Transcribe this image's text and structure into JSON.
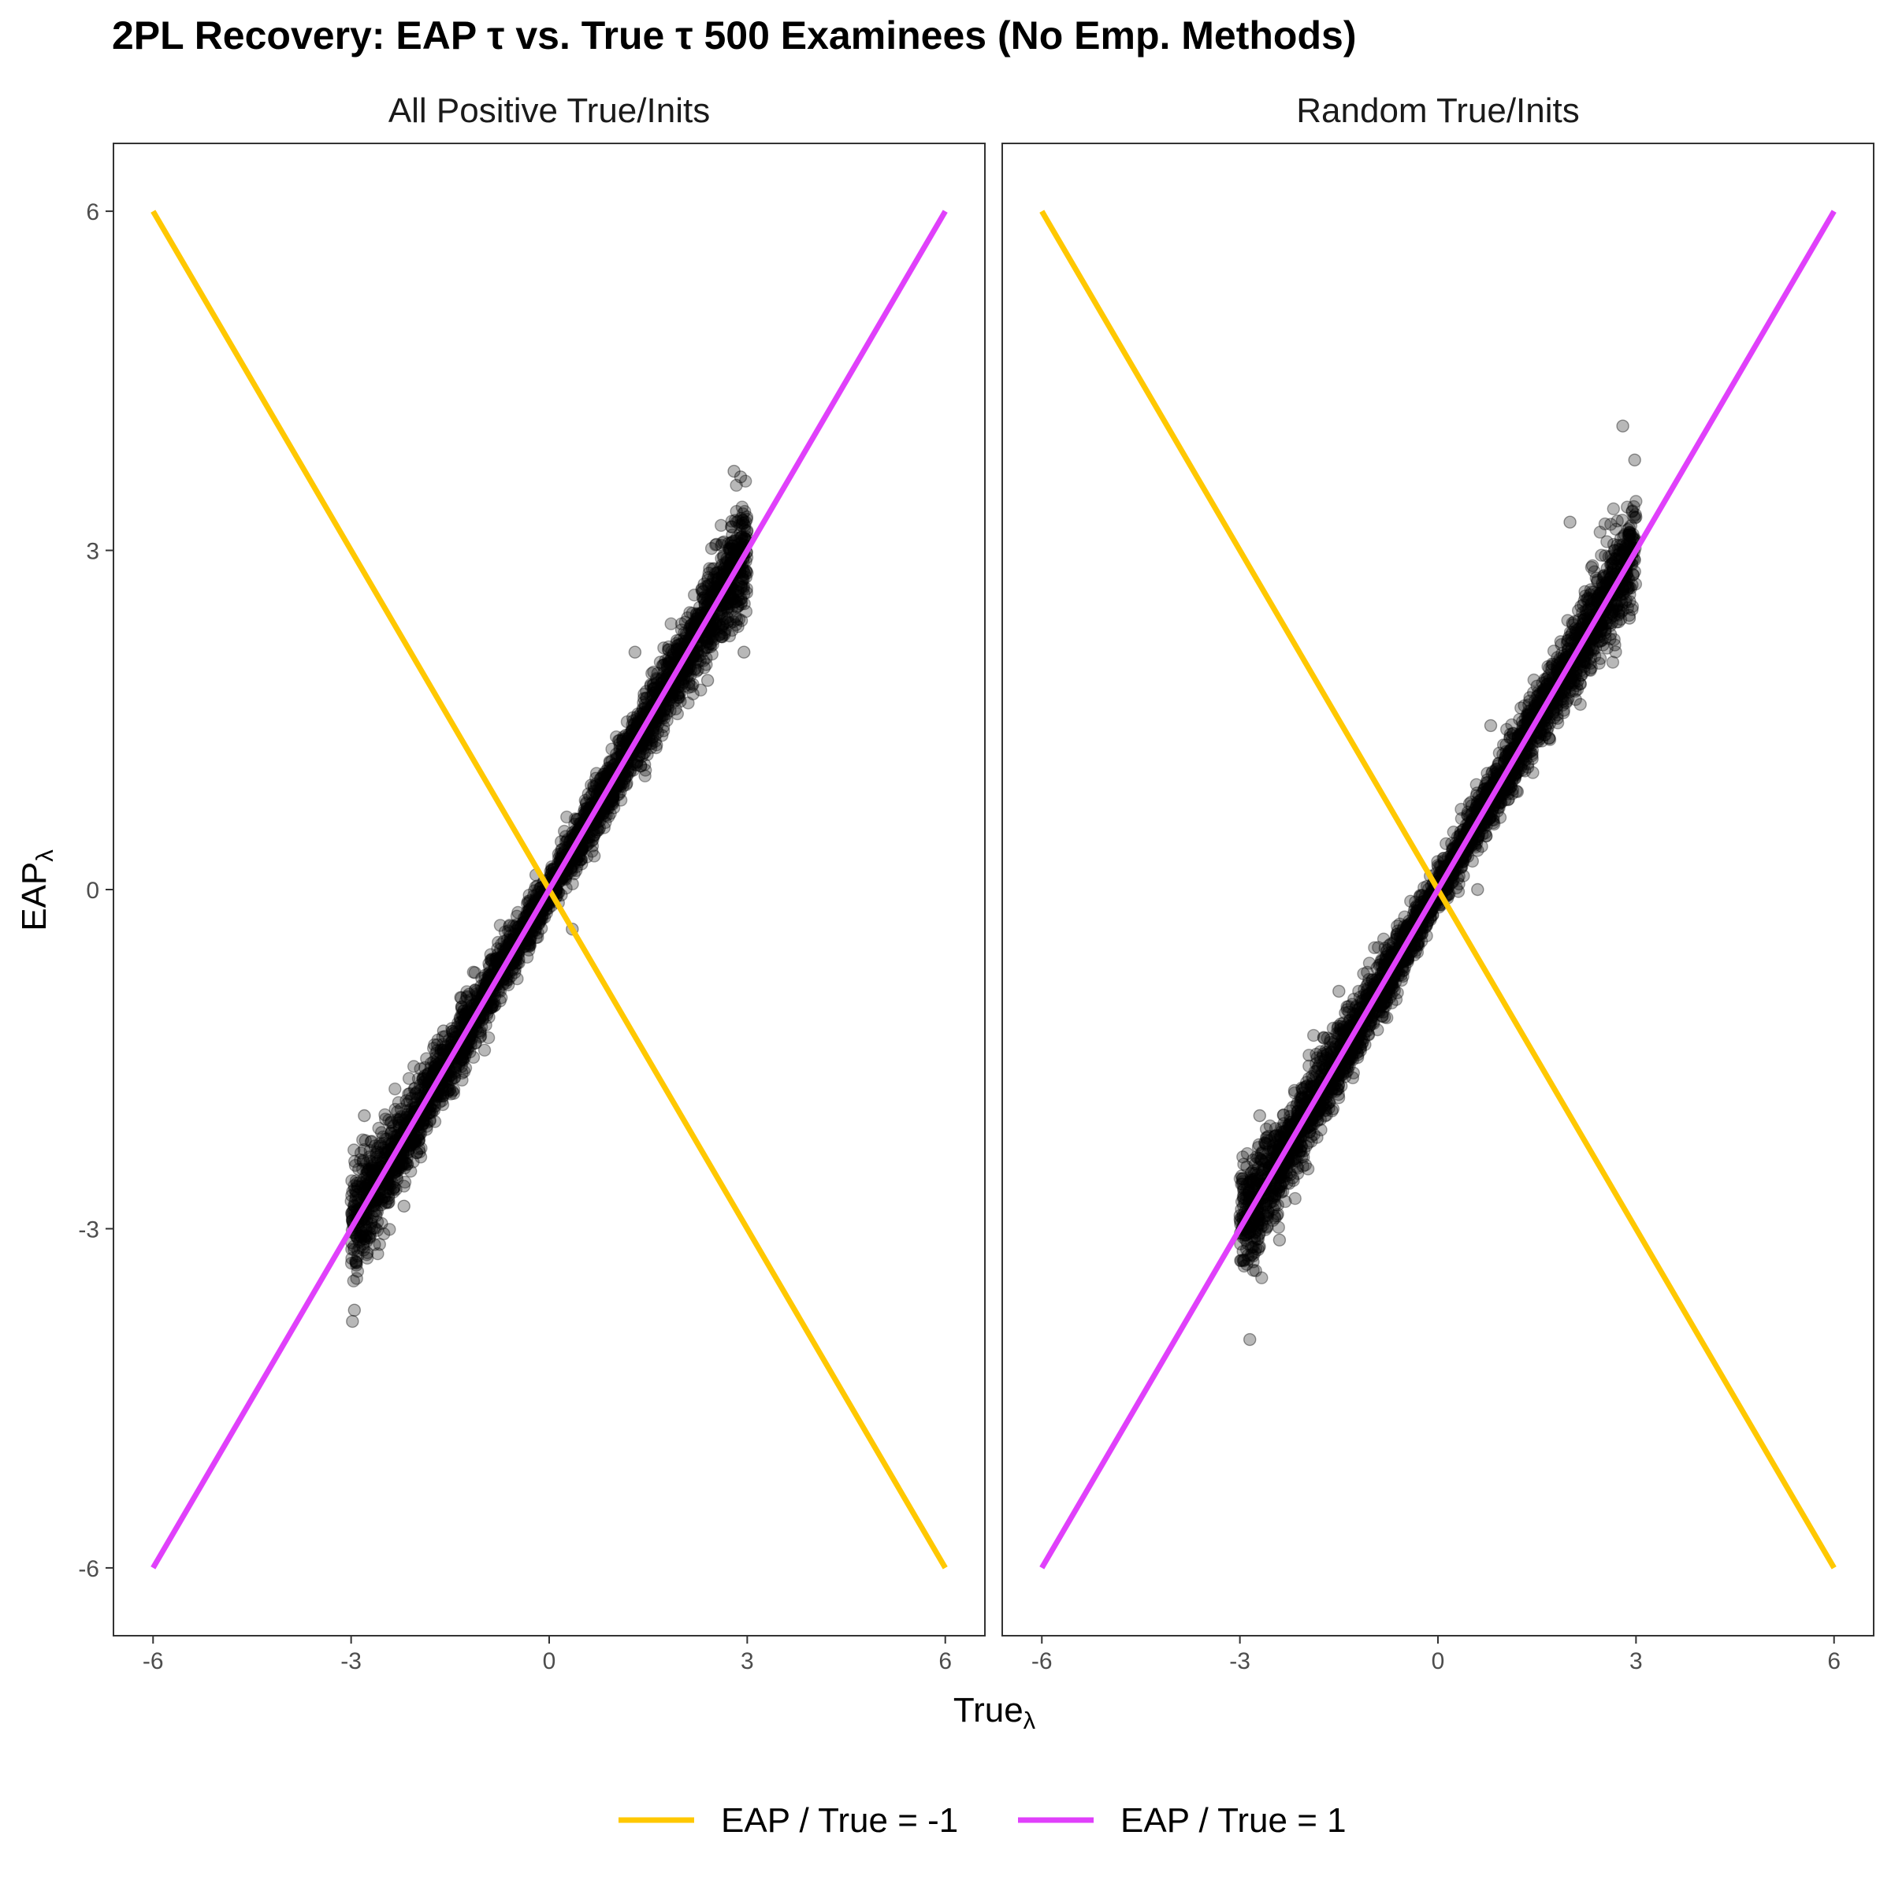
{
  "chart_data": {
    "type": "scatter",
    "title": "2PL Recovery: EAP τ vs. True τ 500 Examinees (No Emp. Methods)",
    "xlabel": "True",
    "xlabel_sub": "λ",
    "ylabel": "EAP",
    "ylabel_sub": "λ",
    "xlim": [
      -6.6,
      6.6
    ],
    "ylim": [
      -6.6,
      6.6
    ],
    "x_ticks": [
      -6,
      -3,
      0,
      3,
      6
    ],
    "y_ticks": [
      -6,
      -3,
      0,
      3,
      6
    ],
    "x_tick_labels": [
      "-6",
      "-3",
      "0",
      "3",
      "6"
    ],
    "y_tick_labels": [
      "-6",
      "-3",
      "0",
      "3",
      "6"
    ],
    "grid": false,
    "legend_position": "bottom",
    "reference_lines": [
      {
        "name": "EAP / True = -1",
        "slope": -1,
        "x": [
          -6,
          6
        ],
        "y": [
          6,
          -6
        ],
        "color": "#FFC800"
      },
      {
        "name": "EAP / True = 1",
        "slope": 1,
        "x": [
          -6,
          6
        ],
        "y": [
          -6,
          6
        ],
        "color": "#E040FB"
      }
    ],
    "point_color": "#000000",
    "point_opacity": 0.28,
    "facets": [
      {
        "label": "All Positive True/Inits",
        "point_summary": {
          "x_range": [
            -3,
            3
          ],
          "y_at_x_min": [
            -3.8,
            -2.3
          ],
          "y_at_x_max": [
            2.0,
            3.7
          ],
          "relation": "EAP approximately equals True"
        },
        "outliers": [
          {
            "x": -2.98,
            "y": -3.82
          },
          {
            "x": -2.95,
            "y": -3.72
          },
          {
            "x": 2.8,
            "y": 3.7
          },
          {
            "x": 2.9,
            "y": 3.65
          },
          {
            "x": 1.3,
            "y": 2.1
          },
          {
            "x": 2.95,
            "y": 2.1
          },
          {
            "x": 0.35,
            "y": -0.35
          },
          {
            "x": -1.6,
            "y": -1.25
          },
          {
            "x": -2.8,
            "y": -2.0
          },
          {
            "x": -2.2,
            "y": -2.8
          },
          {
            "x": 2.4,
            "y": 1.85
          }
        ]
      },
      {
        "label": "Random True/Inits",
        "point_summary": {
          "x_range": [
            -3,
            3
          ],
          "y_at_x_min": [
            -3.7,
            -2.3
          ],
          "y_at_x_max": [
            2.4,
            4.1
          ],
          "relation": "EAP approximately equals True"
        },
        "outliers": [
          {
            "x": -2.85,
            "y": -3.98
          },
          {
            "x": 2.8,
            "y": 4.1
          },
          {
            "x": 2.98,
            "y": 3.8
          },
          {
            "x": 2.0,
            "y": 3.25
          },
          {
            "x": -2.2,
            "y": -2.55
          },
          {
            "x": -2.4,
            "y": -3.1
          },
          {
            "x": -1.5,
            "y": -0.9
          },
          {
            "x": 0.6,
            "y": 0.0
          },
          {
            "x": 0.8,
            "y": 1.45
          },
          {
            "x": 2.9,
            "y": 2.4
          },
          {
            "x": -2.7,
            "y": -2.0
          }
        ]
      }
    ]
  }
}
